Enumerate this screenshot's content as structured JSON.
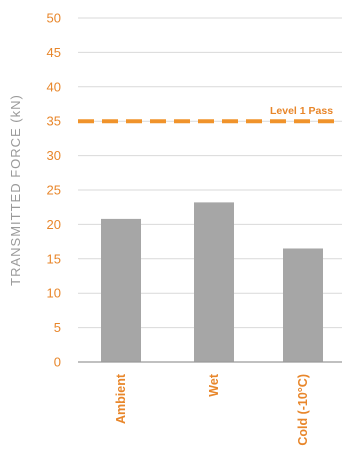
{
  "chart_data": {
    "type": "bar",
    "ylabel": "TRANSMITTED FORCE (kN)",
    "xlabel": "",
    "ylim": [
      0,
      50
    ],
    "yticks": [
      "0",
      "5",
      "10",
      "15",
      "20",
      "25",
      "30",
      "35",
      "40",
      "45",
      "50"
    ],
    "grid": true,
    "categories": [
      "Ambient",
      "Wet",
      "Cold (-10°C)"
    ],
    "values": [
      20.8,
      23.2,
      16.5
    ],
    "bar_color": "#a6a6a6",
    "annotation": {
      "label": "Level 1 Pass",
      "value": 35,
      "color": "#f0932b",
      "style": "dashed"
    }
  }
}
